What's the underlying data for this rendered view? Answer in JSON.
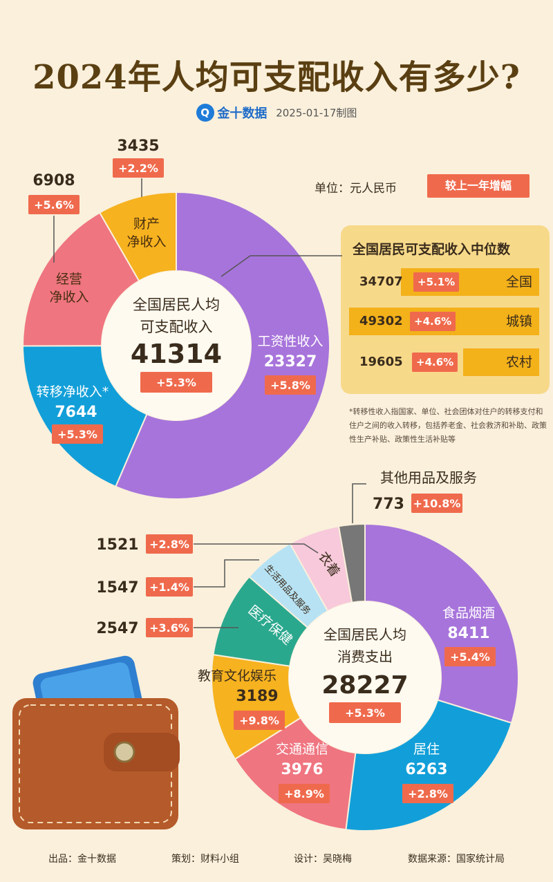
{
  "header": {
    "title": "2024年人均可支配收入有多少?",
    "brand": "金十数据",
    "brand_logo": "Q",
    "date_note": "2025-01-17制图",
    "unit": "单位：元人民币",
    "yoy_legend": "较上一年增幅"
  },
  "median_panel": {
    "title": "全国居民可支配收入中位数",
    "rows": [
      {
        "value": "34707",
        "change": "+5.1%",
        "label": "全国"
      },
      {
        "value": "49302",
        "change": "+4.6%",
        "label": "城镇"
      },
      {
        "value": "19605",
        "change": "+4.6%",
        "label": "农村"
      }
    ]
  },
  "footnote": "*转移性收入指国家、单位、社会团体对住户的转移支付和住户之间的收入转移，包括养老金、社会救济和补助、政策性生产补贴、政策性生活补贴等",
  "chart_data": [
    {
      "type": "pie",
      "center_label": [
        "全国居民人均",
        "可支配收入"
      ],
      "total": 41314,
      "total_change": "+5.3%",
      "slices": [
        {
          "label": "工资性收入",
          "value": 23327,
          "change": "+5.8%",
          "color": "#a774db"
        },
        {
          "label": "转移净收入*",
          "value": 7644,
          "change": "+5.3%",
          "color": "#129fd9"
        },
        {
          "label": "经营净收入",
          "value": 6908,
          "change": "+5.6%",
          "color": "#ef7580"
        },
        {
          "label": "财产净收入",
          "value": 3435,
          "change": "+2.2%",
          "color": "#f6b21f"
        }
      ]
    },
    {
      "type": "pie",
      "center_label": [
        "全国居民人均",
        "消费支出"
      ],
      "total": 28227,
      "total_change": "+5.3%",
      "slices": [
        {
          "label": "食品烟酒",
          "value": 8411,
          "change": "+5.4%",
          "color": "#a774db"
        },
        {
          "label": "居住",
          "value": 6263,
          "change": "+2.8%",
          "color": "#129fd9"
        },
        {
          "label": "交通通信",
          "value": 3976,
          "change": "+8.9%",
          "color": "#ef7580"
        },
        {
          "label": "教育文化娱乐",
          "value": 3189,
          "change": "+9.8%",
          "color": "#f6b21f"
        },
        {
          "label": "医疗保健",
          "value": 2547,
          "change": "+3.6%",
          "color": "#2aa88e"
        },
        {
          "label": "生活用品及服务",
          "value": 1547,
          "change": "+1.4%",
          "color": "#b7e2f3"
        },
        {
          "label": "衣着",
          "value": 1521,
          "change": "+2.8%",
          "color": "#f7c9da"
        },
        {
          "label": "其他用品及服务",
          "value": 773,
          "change": "+10.8%",
          "color": "#777777"
        }
      ]
    }
  ],
  "footer": {
    "producer": "出品：金十数据",
    "planner": "策划：财料小组",
    "designer": "设计：吴晓梅",
    "source": "数据来源：国家统计局"
  }
}
